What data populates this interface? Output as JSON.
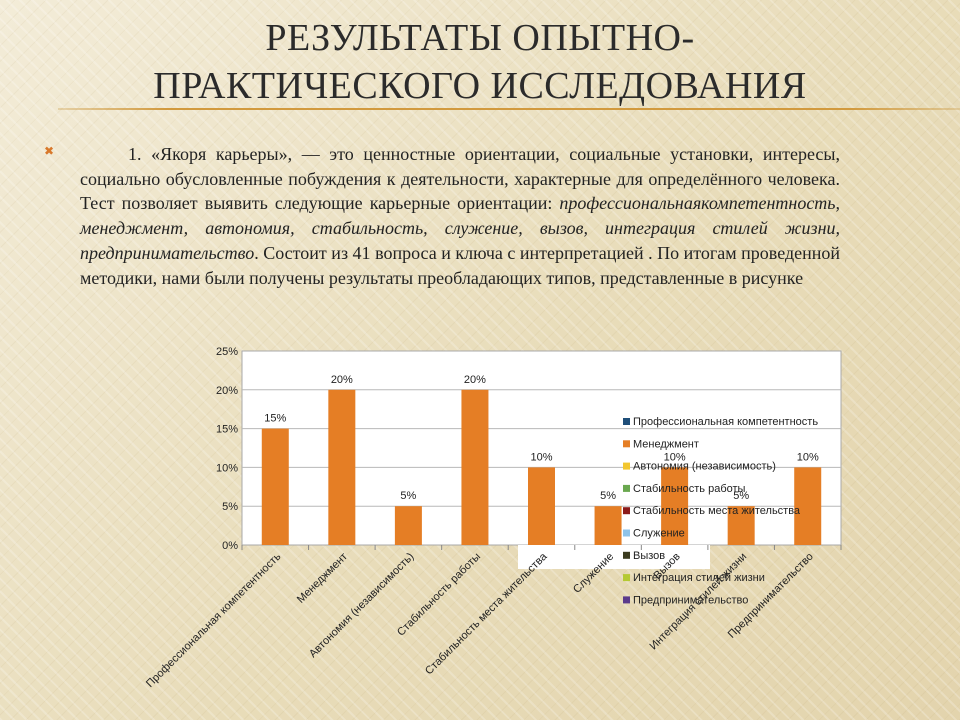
{
  "slide": {
    "title_line1": "РЕЗУЛЬТАТЫ ОПЫТНО-",
    "title_line2": "ПРАКТИЧЕСКОГО ИССЛЕДОВАНИЯ",
    "bullet_icon": "x-bullet-icon",
    "paragraph": {
      "p1": "1. «Якоря карьеры», — это ценностные ориентации, социальные установки, интересы, социально обусловленные побуждения к деятельности, характерные для определённого человека. Тест позволяет выявить следующие карьерные ориентации: ",
      "italic_list": "профессиональнаякомпетентность, менеджмент, автономия, стабильность, служение, вызов, интеграция стилей жизни, предпринимательство",
      "p2": ". Состоит из 41 вопроса и  ключа с интерпретацией . По итогам проведенной методики,  нами были получены результаты преобладающих типов, представленные в рисунке"
    }
  },
  "colors": {
    "bar": "#e57e25",
    "accent_rule": "#d29a3e",
    "bullet": "#d8782a"
  },
  "chart_data": {
    "type": "bar",
    "categories": [
      "Профессиональная компетентность",
      "Менеджмент",
      "Автономия (независимость)",
      "Стабильность работы",
      "Стабильность места жительства",
      "Служение",
      "Вызов",
      "Интеграция стилей жизни",
      "Предпринимательство"
    ],
    "values": [
      15,
      20,
      5,
      20,
      10,
      5,
      10,
      5,
      10
    ],
    "data_labels": [
      "15%",
      "20%",
      "5%",
      "20%",
      "10%",
      "5%",
      "10%",
      "5%",
      "10%"
    ],
    "y_ticks": [
      "0%",
      "5%",
      "10%",
      "15%",
      "20%",
      "25%"
    ],
    "ylim": [
      0,
      25
    ],
    "grid": true,
    "legend": {
      "position": "right",
      "entries": [
        {
          "name": "Профессиональная компетентность",
          "color": "#1f4e79"
        },
        {
          "name": "Менеджмент",
          "color": "#e57e25"
        },
        {
          "name": "Автономия (независимость)",
          "color": "#f2c62f"
        },
        {
          "name": "Стабильность работы",
          "color": "#6aa84f"
        },
        {
          "name": "Стабильность места жительства",
          "color": "#8b1a1a"
        },
        {
          "name": "Служение",
          "color": "#8fc3e8"
        },
        {
          "name": "Вызов",
          "color": "#3b3b1f"
        },
        {
          "name": "Интеграция стилей жизни",
          "color": "#b5c932"
        },
        {
          "name": "Предпринимательство",
          "color": "#5b3b8c"
        }
      ]
    }
  }
}
